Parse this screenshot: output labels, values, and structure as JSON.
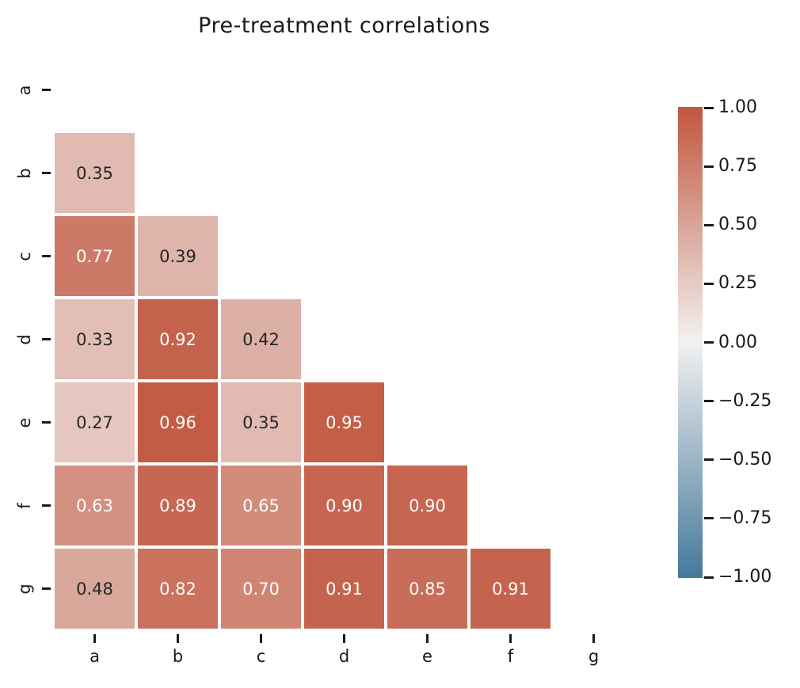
{
  "figure": {
    "title": "Pre-treatment correlations"
  },
  "chart_data": {
    "type": "heatmap",
    "title": "Pre-treatment correlations",
    "x_categories": [
      "a",
      "b",
      "c",
      "d",
      "e",
      "f",
      "g"
    ],
    "y_categories": [
      "a",
      "b",
      "c",
      "d",
      "e",
      "f",
      "g"
    ],
    "mask": "upper triangle and diagonal hidden (nulls)",
    "matrix": [
      [
        null,
        null,
        null,
        null,
        null,
        null,
        null
      ],
      [
        0.35,
        null,
        null,
        null,
        null,
        null,
        null
      ],
      [
        0.77,
        0.39,
        null,
        null,
        null,
        null,
        null
      ],
      [
        0.33,
        0.92,
        0.42,
        null,
        null,
        null,
        null
      ],
      [
        0.27,
        0.96,
        0.35,
        0.95,
        null,
        null,
        null
      ],
      [
        0.63,
        0.89,
        0.65,
        0.9,
        0.9,
        null,
        null
      ],
      [
        0.48,
        0.82,
        0.7,
        0.91,
        0.85,
        0.91,
        null
      ]
    ],
    "annotation_decimals": 2,
    "annotation_light_threshold": 0.55,
    "colorbar": {
      "vmin": -1,
      "vmax": 1,
      "position": "right",
      "tick_labels": [
        "1.00",
        "0.75",
        "0.50",
        "0.25",
        "0.00",
        "−0.25",
        "−0.50",
        "−0.75",
        "−1.00"
      ]
    },
    "colors": {
      "positive_end": "#c1563e",
      "midpoint": "#f2f1f0",
      "negative_end": "#44799b",
      "annot_dark": "#262626",
      "annot_light": "#ffffff",
      "cell_gap": "#ffffff",
      "tick": "#1a1a1a"
    },
    "legend": "none",
    "grid": false
  }
}
